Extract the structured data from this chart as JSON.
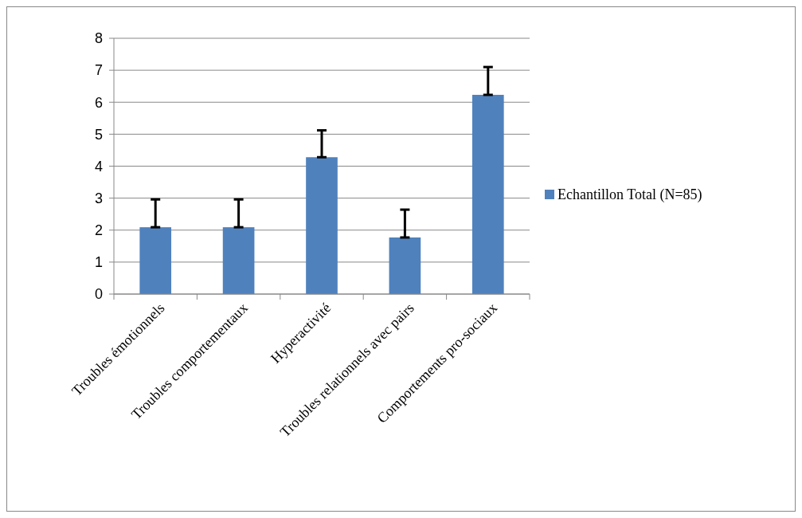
{
  "chart_data": {
    "type": "bar",
    "categories": [
      "Troubles émotionnels",
      "Troubles comportementaux",
      "Hyperactivité",
      "Troubles relationnels avec pairs",
      "Comportements pro-sociaux"
    ],
    "series": [
      {
        "name": "Echantillon Total (N=85)",
        "color": "#4f81bd",
        "values": [
          2.09,
          2.09,
          4.28,
          1.77,
          6.23
        ],
        "errors": [
          [
            2.09,
            2.96
          ],
          [
            2.09,
            2.96
          ],
          [
            4.28,
            5.12
          ],
          [
            1.77,
            2.64
          ],
          [
            6.23,
            7.1
          ]
        ]
      }
    ],
    "ylim": [
      0,
      8
    ],
    "yticks": [
      0,
      1,
      2,
      3,
      4,
      5,
      6,
      7,
      8
    ],
    "grid": "y",
    "legend": "right"
  }
}
